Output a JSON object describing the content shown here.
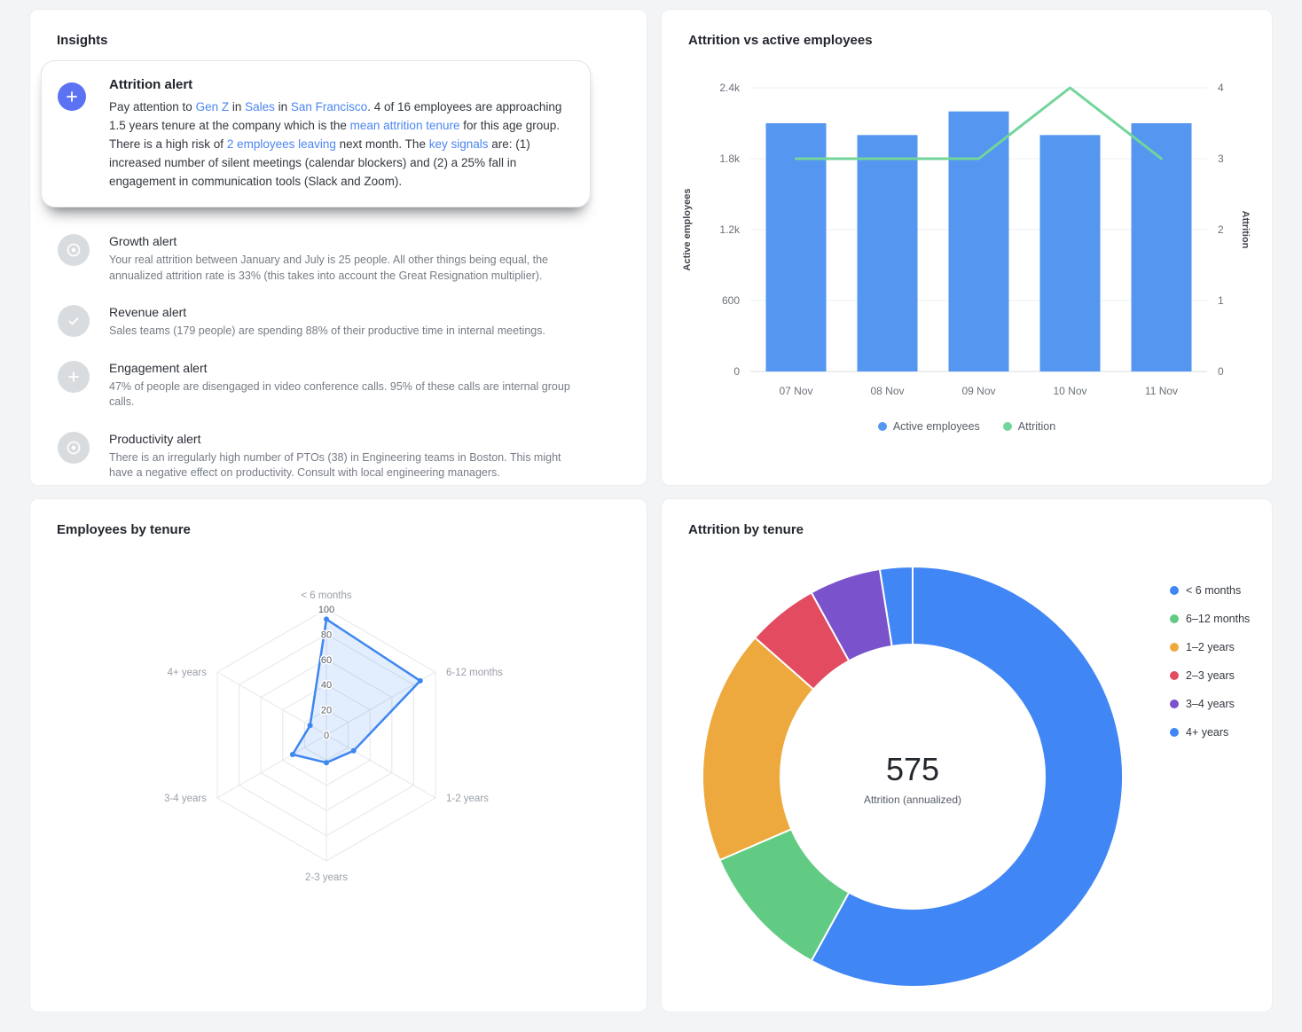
{
  "insights": {
    "title": "Insights",
    "featured_alert": {
      "title": "Attrition alert",
      "segments": [
        {
          "text": "Pay attention to "
        },
        {
          "text": "Gen Z",
          "link": true
        },
        {
          "text": " in "
        },
        {
          "text": "Sales",
          "link": true
        },
        {
          "text": " in "
        },
        {
          "text": "San Francisco",
          "link": true
        },
        {
          "text": ". 4 of 16 employees are approaching 1.5 years tenure at the company which is the "
        },
        {
          "text": "mean attrition tenure",
          "link": true
        },
        {
          "text": " for this age group. There is a high risk of "
        },
        {
          "text": "2 employees leaving",
          "link": true
        },
        {
          "text": " next month. The "
        },
        {
          "text": "key signals",
          "link": true
        },
        {
          "text": " are: (1) increased number of silent meetings (calendar blockers) and (2) a 25% fall in engagement in communication tools (Slack and Zoom)."
        }
      ]
    },
    "alerts": [
      {
        "icon": "circle-dot-icon",
        "title": "Growth alert",
        "body": "Your real attrition between January and July is 25 people. All other things being equal, the annualized attrition rate is 33% (this takes into account the Great Resignation multiplier)."
      },
      {
        "icon": "check-icon",
        "title": "Revenue alert",
        "body": "Sales teams (179 people) are spending 88% of their productive time in internal meetings."
      },
      {
        "icon": "plus-icon",
        "title": "Engagement alert",
        "body": "47% of people are disengaged in video conference calls. 95% of these calls are internal group calls."
      },
      {
        "icon": "circle-dot-icon",
        "title": "Productivity alert",
        "body": "There is an irregularly high number of PTOs (38) in Engineering teams in Boston. This might have a negative effect on productivity. Consult with local engineering managers."
      }
    ]
  },
  "chart_data": [
    {
      "id": "attrition_vs_active",
      "type": "bar",
      "title": "Attrition vs active employees",
      "categories": [
        "07 Nov",
        "08 Nov",
        "09 Nov",
        "10 Nov",
        "11 Nov"
      ],
      "series": [
        {
          "name": "Active employees",
          "type": "bar",
          "axis": "left",
          "color": "#5596f0",
          "values": [
            2100,
            2000,
            2200,
            2000,
            2100
          ]
        },
        {
          "name": "Attrition",
          "type": "line",
          "axis": "right",
          "color": "#72d59a",
          "values": [
            3,
            3,
            3,
            4,
            3
          ]
        }
      ],
      "left_axis": {
        "label": "Active employees",
        "min": 0,
        "max": 2400,
        "ticks": [
          "0",
          "600",
          "1.2k",
          "1.8k",
          "2.4k"
        ]
      },
      "right_axis": {
        "label": "Attrition",
        "min": 0,
        "max": 4,
        "ticks": [
          "0",
          "1",
          "2",
          "3",
          "4"
        ]
      },
      "legend": [
        "Active employees",
        "Attrition"
      ],
      "legend_position": "bottom",
      "grid": true
    },
    {
      "id": "employees_by_tenure",
      "type": "radar",
      "title": "Employees by tenure",
      "axes": [
        "< 6 months",
        "6-12 months",
        "1-2 years",
        "2-3 years",
        "3-4 years",
        "4+ years"
      ],
      "ring_labels": [
        "0",
        "20",
        "40",
        "60",
        "80",
        "100"
      ],
      "max": 100,
      "values": [
        92,
        86,
        25,
        22,
        31,
        15
      ],
      "color": "#3e86f0"
    },
    {
      "id": "attrition_by_tenure",
      "type": "pie",
      "title": "Attrition by tenure",
      "center_value": "575",
      "center_label": "Attrition (annualized)",
      "legend_position": "right",
      "slices": [
        {
          "label": "< 6 months",
          "color": "#4186f5",
          "percent": 58
        },
        {
          "label": "6–12 months",
          "color": "#62cb83",
          "percent": 10.5
        },
        {
          "label": "1–2 years",
          "color": "#eda93d",
          "percent": 18
        },
        {
          "label": "2–3 years",
          "color": "#e24b60",
          "percent": 5.5
        },
        {
          "label": "3–4 years",
          "color": "#7a52cc",
          "percent": 5.5
        },
        {
          "label": "4+ years",
          "color": "#4186f5",
          "percent": 2.5
        }
      ]
    }
  ]
}
